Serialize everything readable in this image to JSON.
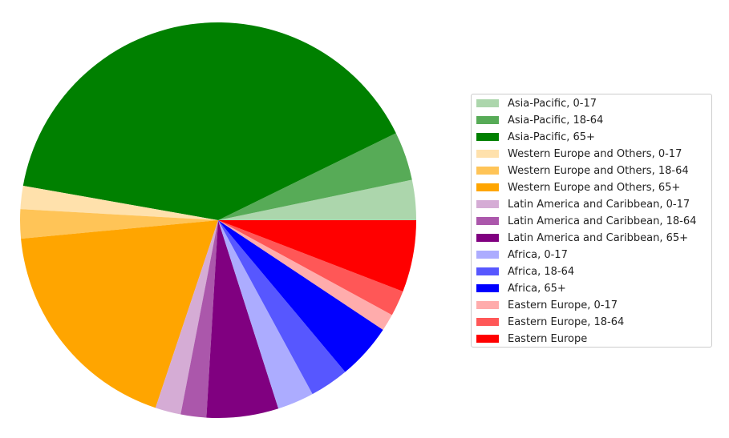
{
  "chart_data": {
    "type": "pie",
    "title": "",
    "legend_position": "right",
    "slices": [
      {
        "label": "Asia-Pacific, 0-17",
        "value": 3.3,
        "color": "#acd6ac"
      },
      {
        "label": "Asia-Pacific, 18-64",
        "value": 4.0,
        "color": "#57ab57"
      },
      {
        "label": "Asia-Pacific, 65+",
        "value": 40.2,
        "color": "#008000"
      },
      {
        "label": "Western Europe and Others, 0-17",
        "value": 1.9,
        "color": "#ffe1ac"
      },
      {
        "label": "Western Europe and Others, 18-64",
        "value": 2.4,
        "color": "#ffc457"
      },
      {
        "label": "Western Europe and Others, 65+",
        "value": 18.5,
        "color": "#ffa500"
      },
      {
        "label": "Latin America and Caribbean, 0-17",
        "value": 2.1,
        "color": "#d5acd5"
      },
      {
        "label": "Latin America and Caribbean, 18-64",
        "value": 2.1,
        "color": "#ab57ab"
      },
      {
        "label": "Latin America and Caribbean, 65+",
        "value": 5.9,
        "color": "#800080"
      },
      {
        "label": "Africa, 0-17",
        "value": 3.0,
        "color": "#acacff"
      },
      {
        "label": "Africa, 18-64",
        "value": 3.2,
        "color": "#5757ff"
      },
      {
        "label": "Africa, 65+",
        "value": 4.6,
        "color": "#0000ff"
      },
      {
        "label": "Eastern Europe, 0-17",
        "value": 1.4,
        "color": "#ffacac"
      },
      {
        "label": "Eastern Europe, 18-64",
        "value": 2.1,
        "color": "#ff5757"
      },
      {
        "label": "Eastern Europe",
        "value": 5.9,
        "color": "#ff0000"
      }
    ]
  }
}
